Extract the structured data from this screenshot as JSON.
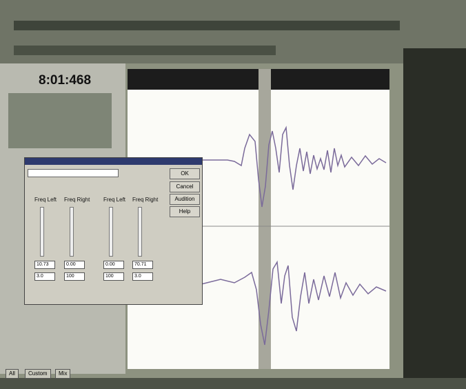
{
  "transport": {
    "time": "8:01:468"
  },
  "dialog": {
    "buttons": [
      "OK",
      "Cancel",
      "Audition",
      "Help"
    ],
    "sliders": [
      {
        "label": "Freq Left",
        "value": "10.73",
        "gain": "3.0"
      },
      {
        "label": "Freq Right",
        "value": "0.00",
        "gain": "100"
      },
      {
        "label": "Freq Left",
        "value": "0.00",
        "gain": "100"
      },
      {
        "label": "Freq Right",
        "value": "70.71",
        "gain": "3.0"
      }
    ]
  },
  "tabs": [
    "All",
    "Custom",
    "Mix"
  ]
}
